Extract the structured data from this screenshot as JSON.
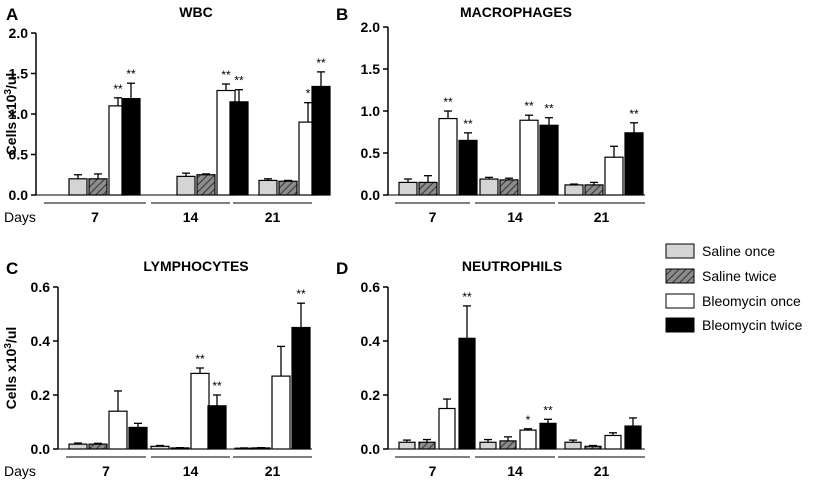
{
  "figure": {
    "y_axis_label_main": "Cells x10",
    "y_axis_label_sup": "3",
    "y_axis_label_unit": "/ul",
    "days_label": "Days"
  },
  "legend": {
    "items": [
      {
        "label": "Saline once",
        "pattern": "light-gray"
      },
      {
        "label": "Saline twice",
        "pattern": "hatched-gray"
      },
      {
        "label": "Bleomycin once",
        "pattern": "white"
      },
      {
        "label": "Bleomycin twice",
        "pattern": "black"
      }
    ]
  },
  "colors": {
    "saline_once": "#d4d4d4",
    "saline_twice_bg": "#8c8c8c",
    "saline_twice_hatch": "#333333",
    "bleomycin_once": "#ffffff",
    "bleomycin_twice": "#000000",
    "outline": "#000000"
  },
  "chart_data": [
    {
      "type": "bar",
      "panel": "A",
      "title": "WBC",
      "categories": [
        "7",
        "14",
        "21"
      ],
      "xlabel": "Days",
      "ylabel": "Cells x10^3/ul",
      "ylim": [
        0,
        2.0
      ],
      "yticks": [
        "0.0",
        "0.5",
        "1.0",
        "1.5",
        "2.0"
      ],
      "ytick_values": [
        0,
        0.5,
        1.0,
        1.5,
        2.0
      ],
      "series": [
        {
          "name": "Saline once",
          "values": [
            0.2,
            0.23,
            0.18
          ],
          "errors": [
            0.05,
            0.04,
            0.02
          ],
          "sig": [
            "",
            "",
            ""
          ]
        },
        {
          "name": "Saline twice",
          "values": [
            0.2,
            0.25,
            0.17
          ],
          "errors": [
            0.06,
            0.01,
            0.01
          ],
          "sig": [
            "",
            "",
            ""
          ]
        },
        {
          "name": "Bleomycin once",
          "values": [
            1.1,
            1.29,
            0.9
          ],
          "errors": [
            0.1,
            0.08,
            0.24
          ],
          "sig": [
            "**",
            "**",
            "*"
          ]
        },
        {
          "name": "Bleomycin twice",
          "values": [
            1.19,
            1.15,
            1.34
          ],
          "errors": [
            0.19,
            0.15,
            0.18
          ],
          "sig": [
            "**",
            "**",
            "**"
          ]
        }
      ]
    },
    {
      "type": "bar",
      "panel": "B",
      "title": "MACROPHAGES",
      "categories": [
        "7",
        "14",
        "21"
      ],
      "xlabel": "",
      "ylabel": "",
      "ylim": [
        0,
        2.0
      ],
      "yticks": [
        "0.0",
        "0.5",
        "1.0",
        "1.5",
        "2.0"
      ],
      "ytick_values": [
        0,
        0.5,
        1.0,
        1.5,
        2.0
      ],
      "series": [
        {
          "name": "Saline once",
          "values": [
            0.15,
            0.19,
            0.12
          ],
          "errors": [
            0.04,
            0.02,
            0.01
          ],
          "sig": [
            "",
            "",
            ""
          ]
        },
        {
          "name": "Saline twice",
          "values": [
            0.15,
            0.18,
            0.12
          ],
          "errors": [
            0.08,
            0.02,
            0.03
          ],
          "sig": [
            "",
            "",
            ""
          ]
        },
        {
          "name": "Bleomycin once",
          "values": [
            0.91,
            0.89,
            0.45
          ],
          "errors": [
            0.09,
            0.06,
            0.13
          ],
          "sig": [
            "**",
            "**",
            ""
          ]
        },
        {
          "name": "Bleomycin twice",
          "values": [
            0.65,
            0.83,
            0.74
          ],
          "errors": [
            0.09,
            0.09,
            0.12
          ],
          "sig": [
            "**",
            "**",
            "**"
          ]
        }
      ]
    },
    {
      "type": "bar",
      "panel": "C",
      "title": "LYMPHOCYTES",
      "categories": [
        "7",
        "14",
        "21"
      ],
      "xlabel": "Days",
      "ylabel": "Cells x10^3/ul",
      "ylim": [
        0,
        0.6
      ],
      "yticks": [
        "0.0",
        "0.2",
        "0.4",
        "0.6"
      ],
      "ytick_values": [
        0,
        0.2,
        0.4,
        0.6
      ],
      "series": [
        {
          "name": "Saline once",
          "values": [
            0.018,
            0.01,
            0.003
          ],
          "errors": [
            0.004,
            0.003,
            0.001
          ],
          "sig": [
            "",
            "",
            ""
          ]
        },
        {
          "name": "Saline twice",
          "values": [
            0.018,
            0.004,
            0.004
          ],
          "errors": [
            0.003,
            0.001,
            0.001
          ],
          "sig": [
            "",
            "",
            ""
          ]
        },
        {
          "name": "Bleomycin once",
          "values": [
            0.14,
            0.28,
            0.27
          ],
          "errors": [
            0.075,
            0.02,
            0.11
          ],
          "sig": [
            "",
            "**",
            ""
          ]
        },
        {
          "name": "Bleomycin twice",
          "values": [
            0.08,
            0.16,
            0.45
          ],
          "errors": [
            0.015,
            0.04,
            0.09
          ],
          "sig": [
            "",
            "**",
            "**"
          ]
        }
      ]
    },
    {
      "type": "bar",
      "panel": "D",
      "title": "NEUTROPHILS",
      "categories": [
        "7",
        "14",
        "21"
      ],
      "xlabel": "",
      "ylabel": "",
      "ylim": [
        0,
        0.6
      ],
      "yticks": [
        "0.0",
        "0.2",
        "0.4",
        "0.6"
      ],
      "ytick_values": [
        0,
        0.2,
        0.4,
        0.6
      ],
      "series": [
        {
          "name": "Saline once",
          "values": [
            0.025,
            0.025,
            0.025
          ],
          "errors": [
            0.008,
            0.01,
            0.008
          ],
          "sig": [
            "",
            "",
            ""
          ]
        },
        {
          "name": "Saline twice",
          "values": [
            0.025,
            0.03,
            0.01
          ],
          "errors": [
            0.01,
            0.015,
            0.003
          ],
          "sig": [
            "",
            "",
            ""
          ]
        },
        {
          "name": "Bleomycin once",
          "values": [
            0.15,
            0.07,
            0.05
          ],
          "errors": [
            0.035,
            0.005,
            0.01
          ],
          "sig": [
            "",
            "*",
            ""
          ]
        },
        {
          "name": "Bleomycin twice",
          "values": [
            0.41,
            0.095,
            0.085
          ],
          "errors": [
            0.12,
            0.015,
            0.03
          ],
          "sig": [
            "**",
            "**",
            ""
          ]
        }
      ]
    }
  ]
}
